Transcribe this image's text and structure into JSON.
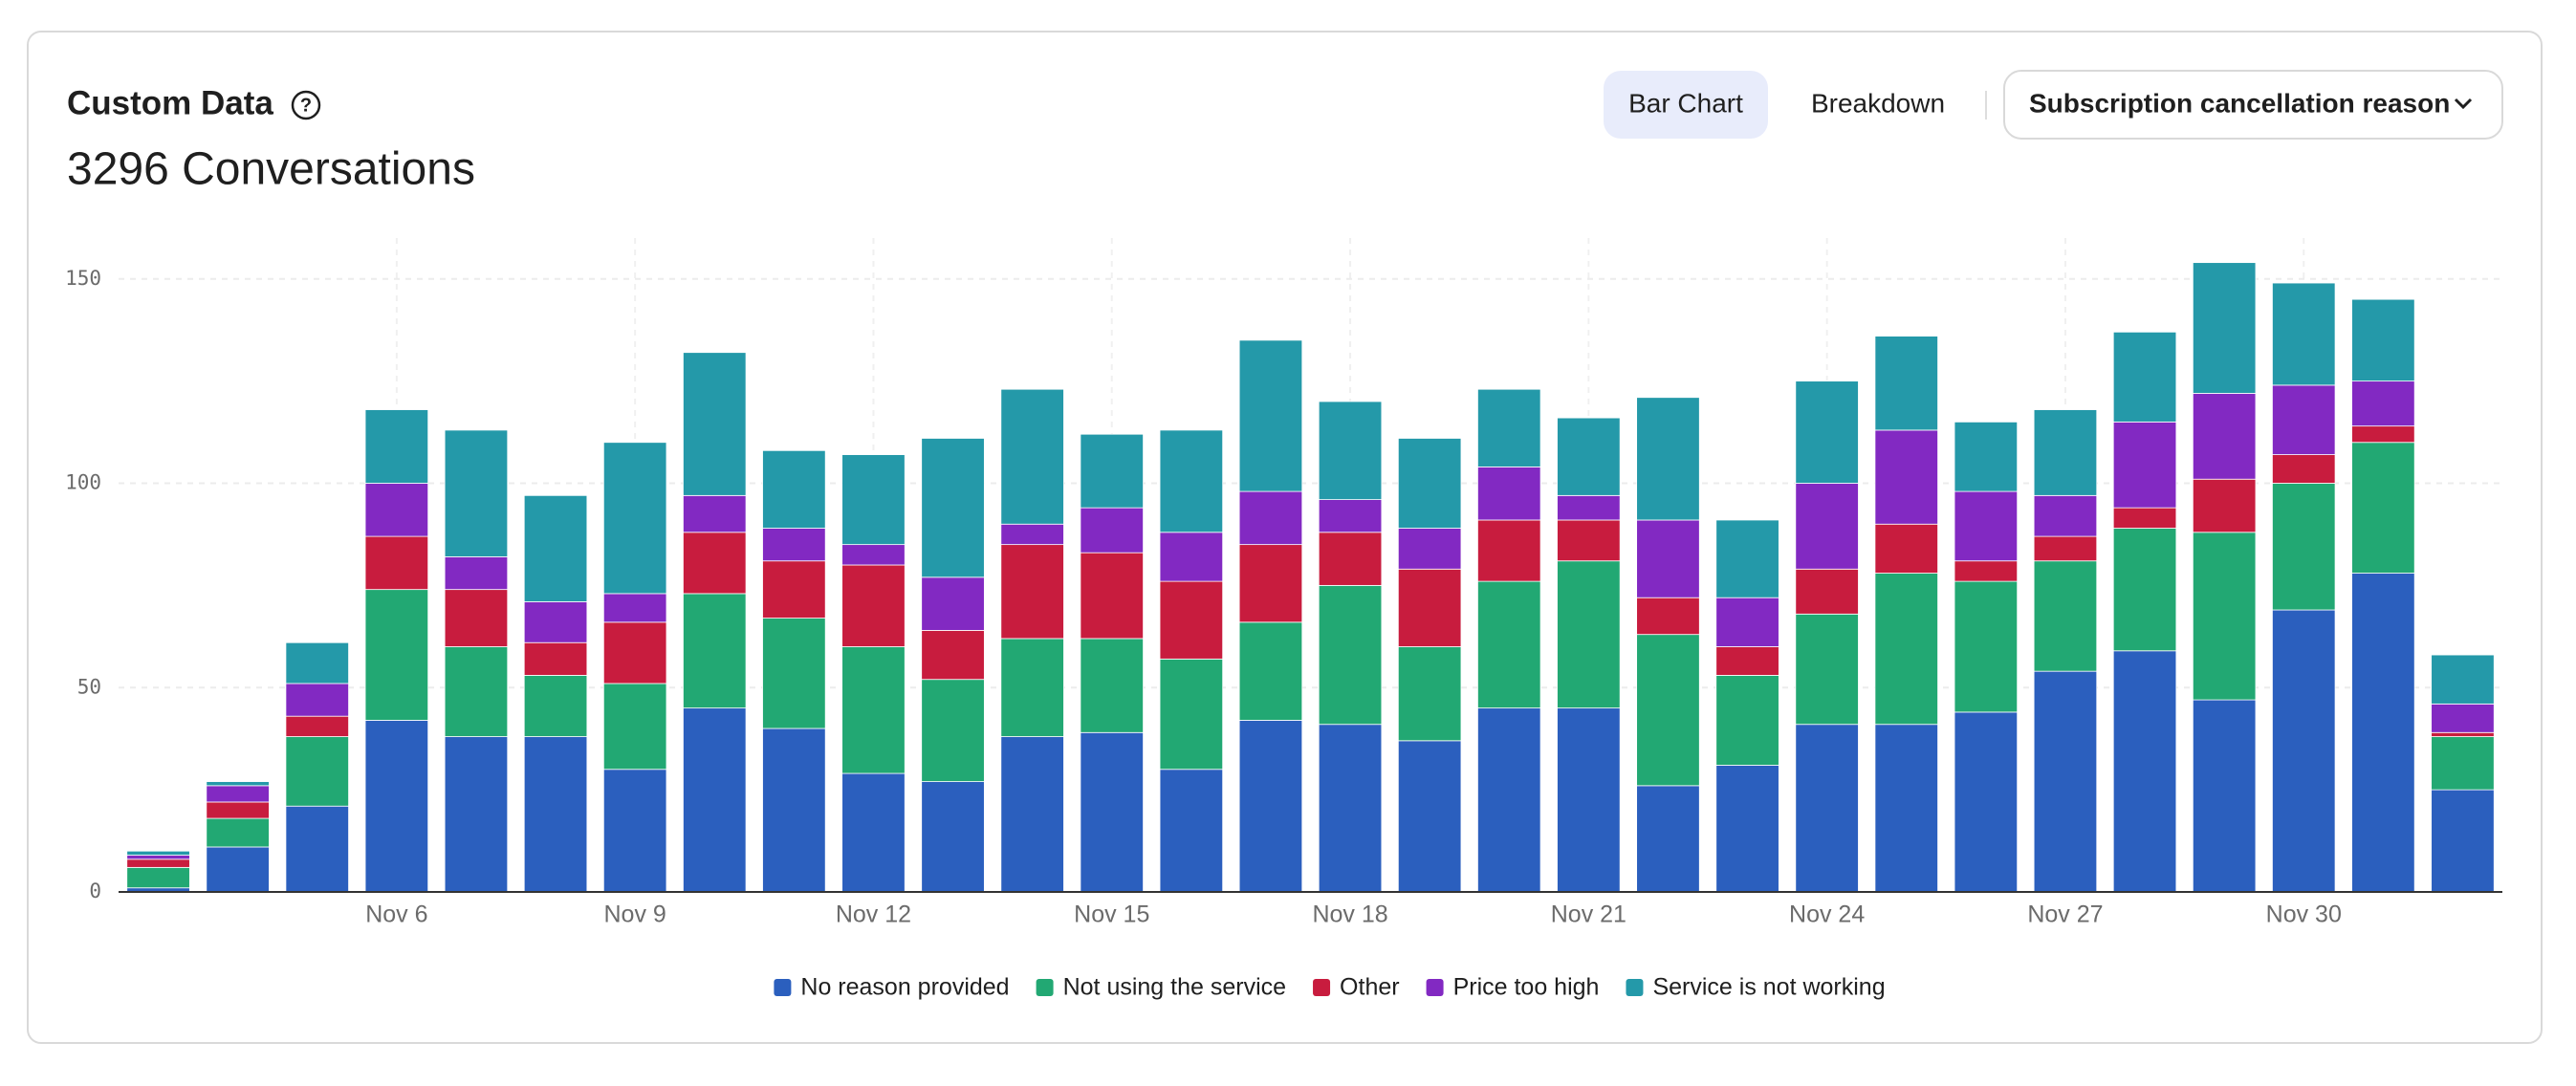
{
  "controls": {
    "view": "Bar Chart",
    "alt_view": "Breakdown",
    "attribute": "Subscription cancellation reason"
  },
  "chart_data": {
    "type": "stacked_bar",
    "title": "Custom Data",
    "subtitle": "3296 Conversations",
    "categories": [
      null,
      null,
      null,
      "Nov 6",
      null,
      null,
      "Nov 9",
      null,
      null,
      "Nov 12",
      null,
      null,
      "Nov 15",
      null,
      null,
      "Nov 18",
      null,
      null,
      "Nov 21",
      null,
      null,
      "Nov 24",
      null,
      null,
      "Nov 27",
      null,
      null,
      "Nov 30",
      null,
      null
    ],
    "series": [
      {
        "name": "No reason provided",
        "color": "#2b5fbe",
        "values": [
          1,
          11,
          21,
          42,
          38,
          38,
          30,
          45,
          40,
          29,
          27,
          38,
          39,
          30,
          42,
          41,
          37,
          45,
          45,
          26,
          31,
          41,
          41,
          44,
          54,
          59,
          47,
          69,
          78,
          25
        ]
      },
      {
        "name": "Not using the service",
        "color": "#22a873",
        "values": [
          5,
          7,
          17,
          32,
          22,
          15,
          21,
          28,
          27,
          31,
          25,
          24,
          23,
          27,
          24,
          34,
          23,
          31,
          36,
          37,
          22,
          27,
          37,
          32,
          27,
          30,
          41,
          31,
          32,
          13
        ]
      },
      {
        "name": "Other",
        "color": "#c81c3e",
        "values": [
          2,
          4,
          5,
          13,
          14,
          8,
          15,
          15,
          14,
          20,
          12,
          23,
          21,
          19,
          19,
          13,
          19,
          15,
          10,
          9,
          7,
          11,
          12,
          5,
          6,
          5,
          13,
          7,
          4,
          1
        ]
      },
      {
        "name": "Price too high",
        "color": "#8229c2",
        "values": [
          1,
          4,
          8,
          13,
          8,
          10,
          7,
          9,
          8,
          5,
          13,
          5,
          11,
          12,
          13,
          8,
          10,
          13,
          6,
          19,
          12,
          21,
          23,
          17,
          10,
          21,
          21,
          17,
          11,
          7
        ]
      },
      {
        "name": "Service is not working",
        "color": "#2499a9",
        "values": [
          1,
          1,
          10,
          18,
          31,
          26,
          37,
          35,
          19,
          22,
          34,
          33,
          18,
          25,
          37,
          24,
          22,
          19,
          19,
          30,
          19,
          25,
          23,
          17,
          21,
          22,
          32,
          25,
          20,
          12
        ]
      }
    ],
    "ylim": [
      0,
      160
    ],
    "yticks": [
      0,
      50,
      100,
      150
    ],
    "grid": true,
    "legend": "bottom"
  }
}
